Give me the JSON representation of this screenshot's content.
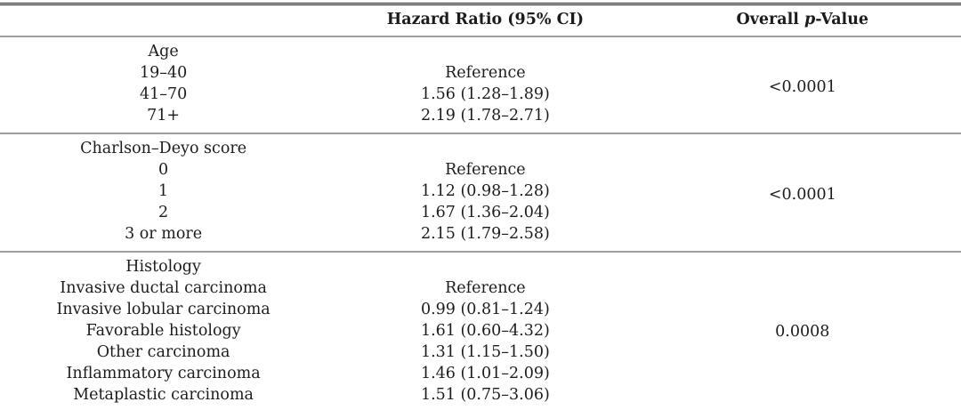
{
  "table": {
    "columns": {
      "label_header": "",
      "hazard_ratio": "Hazard Ratio (95% CI)",
      "pvalue_prefix": "Overall",
      "pvalue_italic": "p",
      "pvalue_suffix": "-Value"
    },
    "sections": [
      {
        "group": "Age",
        "p_value": "<0.0001",
        "rows": [
          {
            "label": "19–40",
            "hr": "Reference"
          },
          {
            "label": "41–70",
            "hr": "1.56 (1.28–1.89)"
          },
          {
            "label": "71+",
            "hr": "2.19 (1.78–2.71)"
          }
        ]
      },
      {
        "group": "Charlson–Deyo score",
        "p_value": "<0.0001",
        "rows": [
          {
            "label": "0",
            "hr": "Reference"
          },
          {
            "label": "1",
            "hr": "1.12 (0.98–1.28)"
          },
          {
            "label": "2",
            "hr": "1.67 (1.36–2.04)"
          },
          {
            "label": "3 or more",
            "hr": "2.15 (1.79–2.58)"
          }
        ]
      },
      {
        "group": "Histology",
        "p_value": "0.0008",
        "rows": [
          {
            "label": "Invasive ductal carcinoma",
            "hr": "Reference"
          },
          {
            "label": "Invasive lobular carcinoma",
            "hr": "0.99 (0.81–1.24)"
          },
          {
            "label": "Favorable histology",
            "hr": "1.61 (0.60–4.32)"
          },
          {
            "label": "Other carcinoma",
            "hr": "1.31 (1.15–1.50)"
          },
          {
            "label": "Inflammatory carcinoma",
            "hr": "1.46 (1.01–2.09)"
          },
          {
            "label": "Metaplastic carcinoma",
            "hr": "1.51 (0.75–3.06)"
          }
        ]
      }
    ]
  }
}
